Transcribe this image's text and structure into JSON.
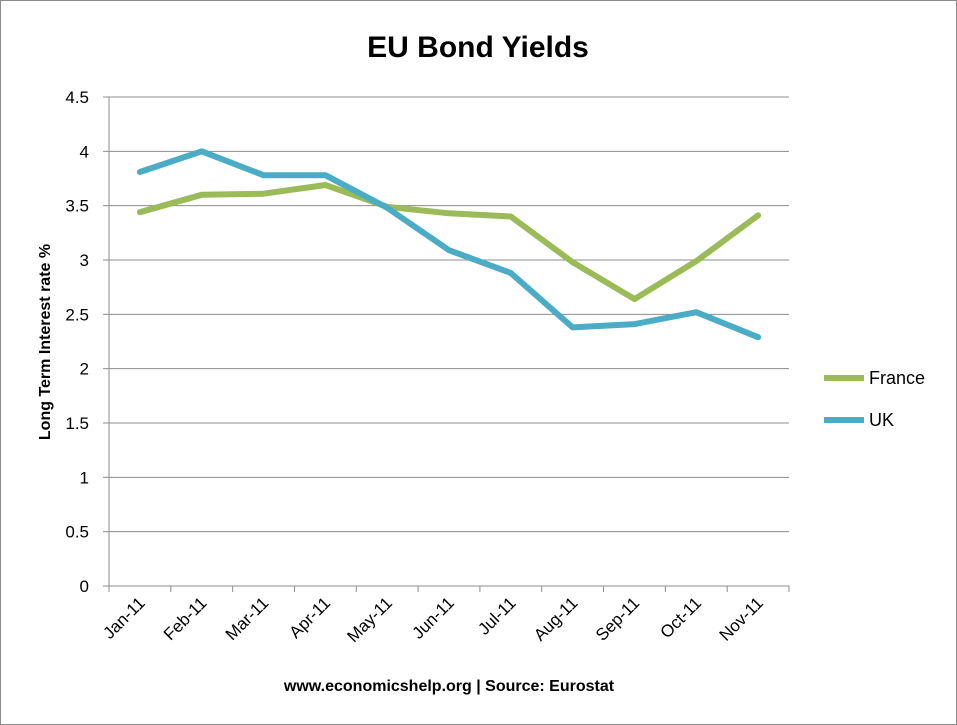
{
  "chart_data": {
    "type": "line",
    "title": "EU Bond Yields",
    "xlabel": "www.economicshelp.org | Source: Eurostat",
    "ylabel": "Long Term Interest rate %",
    "categories": [
      "Jan-11",
      "Feb-11",
      "Mar-11",
      "Apr-11",
      "May-11",
      "Jun-11",
      "Jul-11",
      "Aug-11",
      "Sep-11",
      "Oct-11",
      "Nov-11"
    ],
    "yticks": [
      "0",
      "0.5",
      "1",
      "1.5",
      "2",
      "2.5",
      "3",
      "3.5",
      "4",
      "4.5"
    ],
    "ylim": [
      0,
      4.5
    ],
    "grid": true,
    "legend_position": "right",
    "series": [
      {
        "name": "France",
        "color": "#9bbb59",
        "values": [
          3.44,
          3.6,
          3.61,
          3.69,
          3.49,
          3.43,
          3.4,
          2.98,
          2.64,
          2.99,
          3.41
        ]
      },
      {
        "name": "UK",
        "color": "#4bacc6",
        "values": [
          3.81,
          4.0,
          3.78,
          3.78,
          3.48,
          3.09,
          2.88,
          2.38,
          2.41,
          2.52,
          2.29
        ]
      }
    ]
  }
}
